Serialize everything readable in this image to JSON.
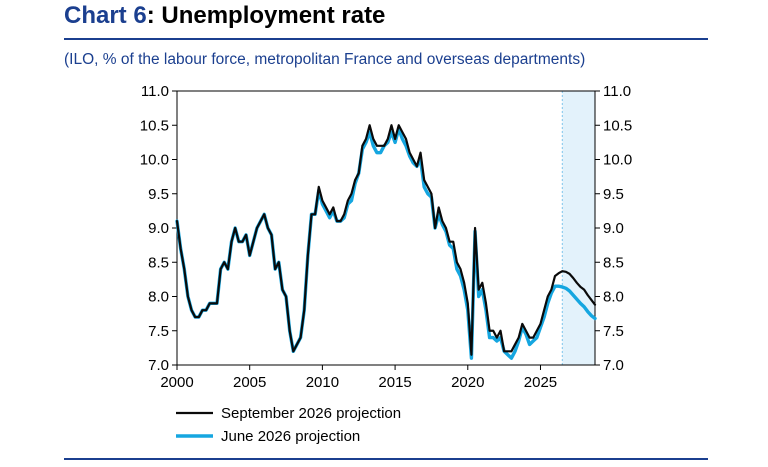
{
  "title": {
    "prefix": "Chart 6",
    "colon": ":",
    "text": " Unemployment rate"
  },
  "subtitle": "(ILO, % of the labour force, metropolitan France and overseas departments)",
  "colors": {
    "accent": "#1b3f8f",
    "sept": "#0a0a0a",
    "june": "#15a6e0",
    "shade": "#e3f2fb"
  },
  "chart_data": {
    "type": "line",
    "xlim": [
      2000,
      2028.75
    ],
    "ylim": [
      7.0,
      11.0
    ],
    "xticks": [
      2000,
      2005,
      2010,
      2015,
      2020,
      2025
    ],
    "yticks": [
      "7.0",
      "7.5",
      "8.0",
      "8.5",
      "9.0",
      "9.5",
      "10.0",
      "10.5",
      "11.0"
    ],
    "projection_shading": [
      2026.5,
      2028.75
    ],
    "grid": false,
    "legend_position": "bottom-left",
    "series": [
      {
        "name": "September 2026 projection",
        "color": "#0a0a0a",
        "points": [
          [
            2000.0,
            9.1
          ],
          [
            2000.25,
            8.7
          ],
          [
            2000.5,
            8.4
          ],
          [
            2000.75,
            8.0
          ],
          [
            2001.0,
            7.8
          ],
          [
            2001.25,
            7.7
          ],
          [
            2001.5,
            7.7
          ],
          [
            2001.75,
            7.8
          ],
          [
            2002.0,
            7.8
          ],
          [
            2002.25,
            7.9
          ],
          [
            2002.5,
            7.9
          ],
          [
            2002.75,
            7.9
          ],
          [
            2003.0,
            8.4
          ],
          [
            2003.25,
            8.5
          ],
          [
            2003.5,
            8.4
          ],
          [
            2003.75,
            8.8
          ],
          [
            2004.0,
            9.0
          ],
          [
            2004.25,
            8.8
          ],
          [
            2004.5,
            8.8
          ],
          [
            2004.75,
            8.9
          ],
          [
            2005.0,
            8.6
          ],
          [
            2005.25,
            8.8
          ],
          [
            2005.5,
            9.0
          ],
          [
            2005.75,
            9.1
          ],
          [
            2006.0,
            9.2
          ],
          [
            2006.25,
            9.0
          ],
          [
            2006.5,
            8.9
          ],
          [
            2006.75,
            8.4
          ],
          [
            2007.0,
            8.5
          ],
          [
            2007.25,
            8.1
          ],
          [
            2007.5,
            8.0
          ],
          [
            2007.75,
            7.5
          ],
          [
            2008.0,
            7.2
          ],
          [
            2008.25,
            7.3
          ],
          [
            2008.5,
            7.4
          ],
          [
            2008.75,
            7.8
          ],
          [
            2009.0,
            8.6
          ],
          [
            2009.25,
            9.2
          ],
          [
            2009.5,
            9.2
          ],
          [
            2009.75,
            9.6
          ],
          [
            2010.0,
            9.4
          ],
          [
            2010.25,
            9.3
          ],
          [
            2010.5,
            9.2
          ],
          [
            2010.75,
            9.3
          ],
          [
            2011.0,
            9.1
          ],
          [
            2011.25,
            9.1
          ],
          [
            2011.5,
            9.2
          ],
          [
            2011.75,
            9.4
          ],
          [
            2012.0,
            9.5
          ],
          [
            2012.25,
            9.7
          ],
          [
            2012.5,
            9.8
          ],
          [
            2012.75,
            10.2
          ],
          [
            2013.0,
            10.3
          ],
          [
            2013.25,
            10.5
          ],
          [
            2013.5,
            10.3
          ],
          [
            2013.75,
            10.2
          ],
          [
            2014.0,
            10.2
          ],
          [
            2014.25,
            10.2
          ],
          [
            2014.5,
            10.3
          ],
          [
            2014.75,
            10.5
          ],
          [
            2015.0,
            10.3
          ],
          [
            2015.25,
            10.5
          ],
          [
            2015.5,
            10.4
          ],
          [
            2015.75,
            10.3
          ],
          [
            2016.0,
            10.1
          ],
          [
            2016.25,
            10.0
          ],
          [
            2016.5,
            9.9
          ],
          [
            2016.75,
            10.1
          ],
          [
            2017.0,
            9.7
          ],
          [
            2017.25,
            9.6
          ],
          [
            2017.5,
            9.5
          ],
          [
            2017.75,
            9.0
          ],
          [
            2018.0,
            9.3
          ],
          [
            2018.25,
            9.1
          ],
          [
            2018.5,
            9.0
          ],
          [
            2018.75,
            8.8
          ],
          [
            2019.0,
            8.8
          ],
          [
            2019.25,
            8.5
          ],
          [
            2019.5,
            8.4
          ],
          [
            2019.75,
            8.2
          ],
          [
            2020.0,
            7.9
          ],
          [
            2020.25,
            7.15
          ],
          [
            2020.5,
            9.0
          ],
          [
            2020.75,
            8.1
          ],
          [
            2021.0,
            8.2
          ],
          [
            2021.25,
            7.9
          ],
          [
            2021.5,
            7.5
          ],
          [
            2021.75,
            7.5
          ],
          [
            2022.0,
            7.4
          ],
          [
            2022.25,
            7.5
          ],
          [
            2022.5,
            7.2
          ],
          [
            2022.75,
            7.2
          ],
          [
            2023.0,
            7.2
          ],
          [
            2023.25,
            7.3
          ],
          [
            2023.5,
            7.4
          ],
          [
            2023.75,
            7.6
          ],
          [
            2024.0,
            7.5
          ],
          [
            2024.25,
            7.4
          ],
          [
            2024.5,
            7.4
          ],
          [
            2024.75,
            7.5
          ],
          [
            2025.0,
            7.6
          ],
          [
            2025.25,
            7.8
          ],
          [
            2025.5,
            8.0
          ],
          [
            2025.75,
            8.1
          ],
          [
            2026.0,
            8.3
          ],
          [
            2026.25,
            8.34
          ],
          [
            2026.5,
            8.37
          ],
          [
            2026.75,
            8.36
          ],
          [
            2027.0,
            8.33
          ],
          [
            2027.25,
            8.27
          ],
          [
            2027.5,
            8.2
          ],
          [
            2027.75,
            8.14
          ],
          [
            2028.0,
            8.1
          ],
          [
            2028.25,
            8.02
          ],
          [
            2028.5,
            7.95
          ],
          [
            2028.75,
            7.88
          ]
        ]
      },
      {
        "name": "June 2026 projection",
        "color": "#15a6e0",
        "points": [
          [
            2000.0,
            9.1
          ],
          [
            2000.25,
            8.7
          ],
          [
            2000.5,
            8.4
          ],
          [
            2000.75,
            8.0
          ],
          [
            2001.0,
            7.8
          ],
          [
            2001.25,
            7.7
          ],
          [
            2001.5,
            7.7
          ],
          [
            2001.75,
            7.8
          ],
          [
            2002.0,
            7.8
          ],
          [
            2002.25,
            7.9
          ],
          [
            2002.5,
            7.9
          ],
          [
            2002.75,
            7.9
          ],
          [
            2003.0,
            8.4
          ],
          [
            2003.25,
            8.5
          ],
          [
            2003.5,
            8.4
          ],
          [
            2003.75,
            8.8
          ],
          [
            2004.0,
            9.0
          ],
          [
            2004.25,
            8.8
          ],
          [
            2004.5,
            8.8
          ],
          [
            2004.75,
            8.9
          ],
          [
            2005.0,
            8.6
          ],
          [
            2005.25,
            8.8
          ],
          [
            2005.5,
            9.0
          ],
          [
            2005.75,
            9.1
          ],
          [
            2006.0,
            9.2
          ],
          [
            2006.25,
            9.0
          ],
          [
            2006.5,
            8.9
          ],
          [
            2006.75,
            8.4
          ],
          [
            2007.0,
            8.5
          ],
          [
            2007.25,
            8.1
          ],
          [
            2007.5,
            8.0
          ],
          [
            2007.75,
            7.5
          ],
          [
            2008.0,
            7.2
          ],
          [
            2008.25,
            7.3
          ],
          [
            2008.5,
            7.4
          ],
          [
            2008.75,
            7.8
          ],
          [
            2009.0,
            8.6
          ],
          [
            2009.25,
            9.2
          ],
          [
            2009.5,
            9.2
          ],
          [
            2009.75,
            9.55
          ],
          [
            2010.0,
            9.35
          ],
          [
            2010.25,
            9.25
          ],
          [
            2010.5,
            9.15
          ],
          [
            2010.75,
            9.25
          ],
          [
            2011.0,
            9.1
          ],
          [
            2011.25,
            9.1
          ],
          [
            2011.5,
            9.15
          ],
          [
            2011.75,
            9.35
          ],
          [
            2012.0,
            9.4
          ],
          [
            2012.25,
            9.65
          ],
          [
            2012.5,
            9.8
          ],
          [
            2012.75,
            10.15
          ],
          [
            2013.0,
            10.25
          ],
          [
            2013.25,
            10.4
          ],
          [
            2013.5,
            10.2
          ],
          [
            2013.75,
            10.1
          ],
          [
            2014.0,
            10.1
          ],
          [
            2014.25,
            10.2
          ],
          [
            2014.5,
            10.25
          ],
          [
            2014.75,
            10.4
          ],
          [
            2015.0,
            10.25
          ],
          [
            2015.25,
            10.45
          ],
          [
            2015.5,
            10.3
          ],
          [
            2015.75,
            10.2
          ],
          [
            2016.0,
            10.05
          ],
          [
            2016.25,
            9.95
          ],
          [
            2016.5,
            9.9
          ],
          [
            2016.75,
            10.0
          ],
          [
            2017.0,
            9.6
          ],
          [
            2017.25,
            9.5
          ],
          [
            2017.5,
            9.45
          ],
          [
            2017.75,
            9.0
          ],
          [
            2018.0,
            9.2
          ],
          [
            2018.25,
            9.05
          ],
          [
            2018.5,
            8.95
          ],
          [
            2018.75,
            8.75
          ],
          [
            2019.0,
            8.7
          ],
          [
            2019.25,
            8.4
          ],
          [
            2019.5,
            8.3
          ],
          [
            2019.75,
            8.1
          ],
          [
            2020.0,
            7.8
          ],
          [
            2020.25,
            7.1
          ],
          [
            2020.5,
            8.95
          ],
          [
            2020.75,
            8.0
          ],
          [
            2021.0,
            8.1
          ],
          [
            2021.25,
            7.8
          ],
          [
            2021.5,
            7.4
          ],
          [
            2021.75,
            7.4
          ],
          [
            2022.0,
            7.35
          ],
          [
            2022.25,
            7.4
          ],
          [
            2022.5,
            7.2
          ],
          [
            2022.75,
            7.15
          ],
          [
            2023.0,
            7.1
          ],
          [
            2023.25,
            7.2
          ],
          [
            2023.5,
            7.35
          ],
          [
            2023.75,
            7.55
          ],
          [
            2024.0,
            7.45
          ],
          [
            2024.25,
            7.3
          ],
          [
            2024.5,
            7.35
          ],
          [
            2024.75,
            7.4
          ],
          [
            2025.0,
            7.55
          ],
          [
            2025.25,
            7.7
          ],
          [
            2025.5,
            7.9
          ],
          [
            2025.75,
            8.05
          ],
          [
            2026.0,
            8.15
          ],
          [
            2026.25,
            8.15
          ],
          [
            2026.5,
            8.14
          ],
          [
            2026.75,
            8.12
          ],
          [
            2027.0,
            8.08
          ],
          [
            2027.25,
            8.02
          ],
          [
            2027.5,
            7.96
          ],
          [
            2027.75,
            7.9
          ],
          [
            2028.0,
            7.85
          ],
          [
            2028.25,
            7.78
          ],
          [
            2028.5,
            7.72
          ],
          [
            2028.75,
            7.68
          ]
        ]
      }
    ]
  }
}
